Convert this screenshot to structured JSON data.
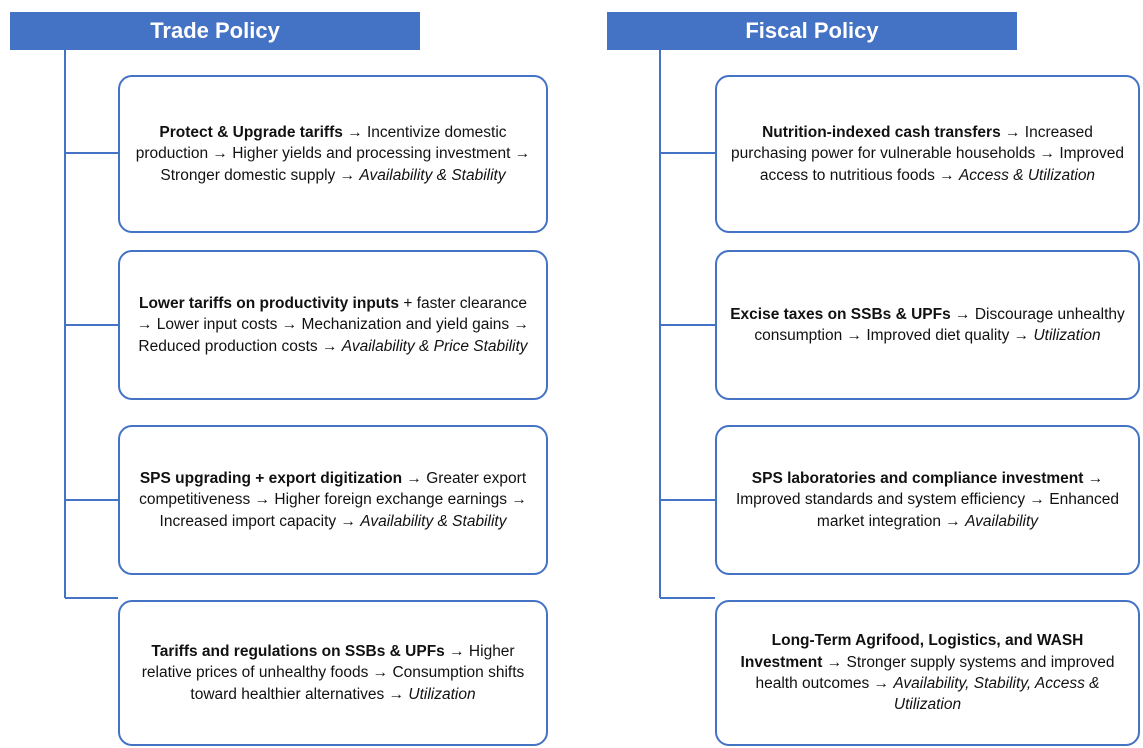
{
  "columns": [
    {
      "title": "Trade Policy",
      "boxes": [
        {
          "bold": "Protect & Upgrade tariffs",
          "body": "→ Incentivize domestic production → Higher yields and processing investment → Stronger domestic supply →",
          "italic": "Availability & Stability"
        },
        {
          "bold": "Lower tariffs on productivity inputs",
          "body": "+ faster clearance → Lower input costs → Mechanization and yield gains → Reduced production costs →",
          "italic": "Availability & Price Stability"
        },
        {
          "bold": "SPS upgrading + export digitization",
          "body": "→ Greater export competitiveness → Higher foreign exchange earnings → Increased import capacity →",
          "italic": "Availability & Stability"
        },
        {
          "bold": "Tariffs and regulations on SSBs & UPFs",
          "body": "→ Higher relative prices of unhealthy foods → Consumption shifts toward healthier alternatives →",
          "italic": "Utilization"
        }
      ]
    },
    {
      "title": "Fiscal Policy",
      "boxes": [
        {
          "bold": "Nutrition-indexed cash transfers",
          "body": "→ Increased purchasing power for vulnerable households → Improved access to nutritious foods →",
          "italic": "Access & Utilization"
        },
        {
          "bold": "Excise taxes on SSBs & UPFs",
          "body": "→ Discourage unhealthy consumption → Improved diet quality →",
          "italic": "Utilization"
        },
        {
          "bold": "SPS laboratories and compliance investment",
          "body": "→ Improved standards and system efficiency → Enhanced market integration →",
          "italic": "Availability"
        },
        {
          "bold": "Long-Term Agrifood, Logistics, and WASH Investment",
          "body": "→ Stronger supply systems and improved health outcomes →",
          "italic": "Availability, Stability, Access & Utilization"
        }
      ]
    }
  ]
}
